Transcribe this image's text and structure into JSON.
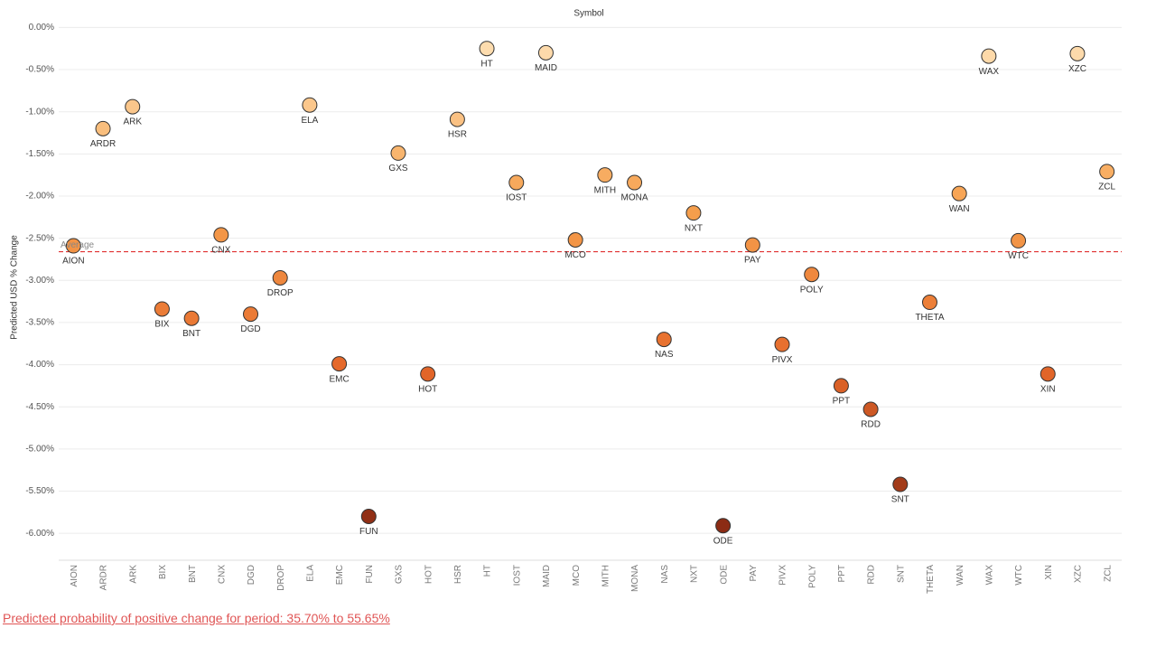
{
  "chart_data": {
    "type": "scatter",
    "title": "Symbol",
    "y_label": "Predicted USD % Change",
    "categories": [
      "AION",
      "ARDR",
      "ARK",
      "BIX",
      "BNT",
      "CNX",
      "DGD",
      "DROP",
      "ELA",
      "EMC",
      "FUN",
      "GXS",
      "HOT",
      "HSR",
      "HT",
      "IOST",
      "MAID",
      "MCO",
      "MITH",
      "MONA",
      "NAS",
      "NXT",
      "ODE",
      "PAY",
      "PIVX",
      "POLY",
      "PPT",
      "RDD",
      "SNT",
      "THETA",
      "WAN",
      "WAX",
      "WTC",
      "XIN",
      "XZC",
      "ZCL"
    ],
    "values": [
      -2.59,
      -1.2,
      -0.94,
      -3.34,
      -3.45,
      -2.46,
      -3.4,
      -2.97,
      -0.92,
      -3.99,
      -5.8,
      -1.49,
      -4.11,
      -1.09,
      -0.25,
      -1.84,
      -0.3,
      -2.52,
      -1.75,
      -1.84,
      -3.7,
      -2.2,
      -5.91,
      -2.58,
      -3.76,
      -2.93,
      -4.25,
      -4.53,
      -5.42,
      -3.26,
      -1.97,
      -0.34,
      -2.53,
      -4.11,
      -0.31,
      -1.71
    ],
    "ylim": [
      -6.32,
      0.09
    ],
    "yticks": [
      {
        "value": 0,
        "label": "0.00%"
      },
      {
        "value": -0.5,
        "label": "-0.50%"
      },
      {
        "value": -1,
        "label": "-1.00%"
      },
      {
        "value": -1.5,
        "label": "-1.50%"
      },
      {
        "value": -2,
        "label": "-2.00%"
      },
      {
        "value": -2.5,
        "label": "-2.50%"
      },
      {
        "value": -3,
        "label": "-3.00%"
      },
      {
        "value": -3.5,
        "label": "-3.50%"
      },
      {
        "value": -4,
        "label": "-4.00%"
      },
      {
        "value": -4.5,
        "label": "-4.50%"
      },
      {
        "value": -5,
        "label": "-5.00%"
      },
      {
        "value": -5.5,
        "label": "-5.50%"
      },
      {
        "value": -6,
        "label": "-6.00%"
      }
    ],
    "grid": true,
    "color_scale": [
      "#fddcae",
      "#f6a04d",
      "#e5682a",
      "#8c2c14"
    ],
    "reference_line": {
      "label": "Average",
      "value": -2.66,
      "color": "#e03030"
    },
    "footer": "Predicted probability of positive change for period:  35.70% to 55.65%"
  }
}
